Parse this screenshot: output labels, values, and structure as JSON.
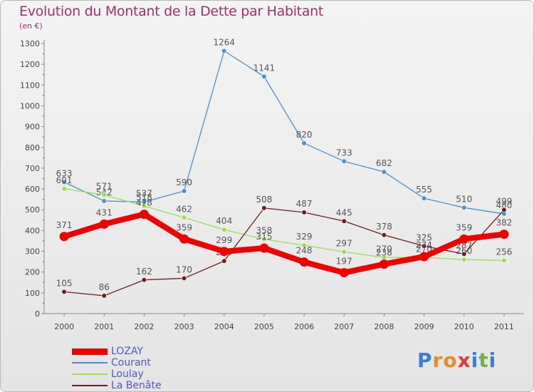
{
  "chart_data": {
    "type": "line",
    "title": "Evolution du Montant de la Dette par Habitant",
    "unit": "(en €)",
    "categories": [
      "2000",
      "2001",
      "2002",
      "2003",
      "2004",
      "2005",
      "2006",
      "2007",
      "2008",
      "2009",
      "2010",
      "2011"
    ],
    "ylim": [
      0,
      1300
    ],
    "yticks": [
      0,
      100,
      200,
      300,
      400,
      500,
      600,
      700,
      800,
      900,
      1000,
      1100,
      1200,
      1300
    ],
    "grid": false,
    "legend_position": "bottom-left",
    "series": [
      {
        "name": "Courant",
        "color": "#4a8fcf",
        "values": [
          633,
          542,
          537,
          590,
          1264,
          1141,
          820,
          733,
          682,
          555,
          510,
          480
        ]
      },
      {
        "name": "Loulay",
        "color": "#99dd55",
        "values": [
          601,
          571,
          518,
          462,
          404,
          358,
          329,
          297,
          270,
          270,
          260,
          256
        ]
      },
      {
        "name": "La Benâte",
        "color": "#6b1e1e",
        "values": [
          105,
          86,
          162,
          170,
          253,
          508,
          487,
          445,
          378,
          325,
          287,
          499
        ]
      },
      {
        "name": "LOZAY",
        "color": "#ee0000",
        "values": [
          371,
          431,
          478,
          359,
          299,
          315,
          248,
          197,
          238,
          274,
          359,
          382
        ]
      }
    ]
  },
  "legend": {
    "order": [
      "LOZAY",
      "Courant",
      "Loulay",
      "La Benâte"
    ]
  },
  "logo": {
    "letters": [
      "P",
      "r",
      "o",
      "x",
      "i",
      "t",
      "i"
    ],
    "colors": [
      "#3b7dd8",
      "#e98a2a",
      "#e98a2a",
      "#e23a3a",
      "#3b7dd8",
      "#6db33f",
      "#3b7dd8"
    ]
  }
}
